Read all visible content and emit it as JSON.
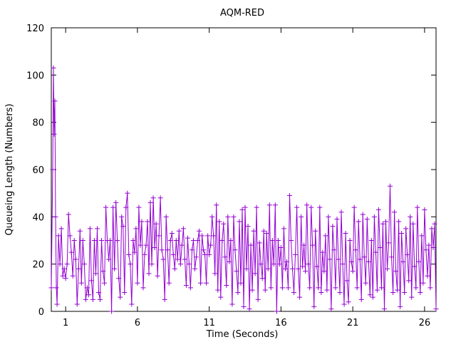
{
  "chart_data": {
    "type": "line",
    "title": "AQM-RED",
    "xlabel": "Time (Seconds)",
    "ylabel": "Queueing Length (Numbers)",
    "xlim": [
      0.0,
      26.8
    ],
    "ylim": [
      0,
      120
    ],
    "x_ticks": [
      1,
      6,
      11,
      16,
      21,
      26
    ],
    "y_ticks": [
      0,
      20,
      40,
      60,
      80,
      100,
      120
    ],
    "grid": false,
    "legend": "none",
    "series_color": "#9400d3",
    "marker": "plus",
    "series": [
      {
        "x": [
          0.0,
          0.1,
          0.15,
          0.2,
          0.25,
          0.3,
          0.35,
          0.4,
          0.5,
          0.6,
          0.7,
          0.8,
          0.9,
          1.0,
          1.1,
          1.2,
          1.3,
          1.4,
          1.5,
          1.6,
          1.7,
          1.8,
          1.9,
          2.0,
          2.1,
          2.2,
          2.3,
          2.4,
          2.5,
          2.6,
          2.7,
          2.8,
          2.9,
          3.0,
          3.1,
          3.2,
          3.3,
          3.4,
          3.5,
          3.6,
          3.7,
          3.8,
          3.9,
          4.0,
          4.1,
          4.2,
          4.3,
          4.4,
          4.5,
          4.6,
          4.7,
          4.8,
          4.9,
          5.0,
          5.1,
          5.2,
          5.3,
          5.4,
          5.5,
          5.6,
          5.7,
          5.8,
          5.9,
          6.0,
          6.1,
          6.2,
          6.3,
          6.4,
          6.5,
          6.6,
          6.7,
          6.8,
          6.9,
          7.0,
          7.1,
          7.2,
          7.3,
          7.4,
          7.5,
          7.6,
          7.7,
          7.8,
          7.9,
          8.0,
          8.1,
          8.2,
          8.3,
          8.4,
          8.5,
          8.6,
          8.7,
          8.8,
          8.9,
          9.0,
          9.1,
          9.2,
          9.3,
          9.4,
          9.5,
          9.6,
          9.7,
          9.8,
          9.9,
          10.0,
          10.1,
          10.2,
          10.3,
          10.4,
          10.5,
          10.6,
          10.7,
          10.8,
          10.9,
          11.0,
          11.1,
          11.2,
          11.3,
          11.4,
          11.5,
          11.6,
          11.7,
          11.8,
          11.9,
          12.0,
          12.1,
          12.2,
          12.3,
          12.4,
          12.5,
          12.6,
          12.7,
          12.8,
          12.9,
          13.0,
          13.1,
          13.2,
          13.3,
          13.4,
          13.5,
          13.6,
          13.7,
          13.8,
          13.9,
          14.0,
          14.1,
          14.2,
          14.3,
          14.4,
          14.5,
          14.6,
          14.7,
          14.8,
          14.9,
          15.0,
          15.1,
          15.2,
          15.3,
          15.4,
          15.5,
          15.6,
          15.7,
          15.8,
          15.9,
          16.0,
          16.1,
          16.2,
          16.3,
          16.4,
          16.5,
          16.6,
          16.7,
          16.8,
          16.9,
          17.0,
          17.1,
          17.2,
          17.3,
          17.4,
          17.5,
          17.6,
          17.7,
          17.8,
          17.9,
          18.0,
          18.1,
          18.2,
          18.3,
          18.4,
          18.5,
          18.6,
          18.7,
          18.8,
          18.9,
          19.0,
          19.1,
          19.2,
          19.3,
          19.4,
          19.5,
          19.6,
          19.7,
          19.8,
          19.9,
          20.0,
          20.1,
          20.2,
          20.3,
          20.4,
          20.5,
          20.6,
          20.7,
          20.8,
          20.9,
          21.0,
          21.1,
          21.2,
          21.3,
          21.4,
          21.5,
          21.6,
          21.7,
          21.8,
          21.9,
          22.0,
          22.1,
          22.2,
          22.3,
          22.4,
          22.5,
          22.6,
          22.7,
          22.8,
          22.9,
          23.0,
          23.1,
          23.2,
          23.3,
          23.4,
          23.5,
          23.6,
          23.7,
          23.8,
          23.9,
          24.0,
          24.1,
          24.2,
          24.3,
          24.4,
          24.5,
          24.6,
          24.7,
          24.8,
          24.9,
          25.0,
          25.1,
          25.2,
          25.3,
          25.4,
          25.5,
          25.6,
          25.7,
          25.8,
          25.9,
          26.0,
          26.1,
          26.2,
          26.3,
          26.4,
          26.5,
          26.6,
          26.7,
          26.8
        ],
        "y": [
          10,
          60,
          103,
          75,
          89,
          40,
          10,
          3,
          32,
          20,
          35,
          15,
          18,
          14,
          20,
          41,
          32,
          25,
          15,
          30,
          22,
          3,
          18,
          34,
          12,
          30,
          20,
          5,
          10,
          7,
          35,
          13,
          5,
          30,
          16,
          35,
          8,
          5,
          30,
          17,
          12,
          44,
          30,
          22,
          30,
          0,
          44,
          18,
          46,
          30,
          14,
          6,
          40,
          36,
          8,
          44,
          50,
          24,
          20,
          3,
          30,
          25,
          35,
          12,
          44,
          28,
          38,
          10,
          24,
          28,
          38,
          16,
          46,
          20,
          48,
          27,
          37,
          15,
          32,
          48,
          26,
          22,
          5,
          40,
          26,
          12,
          30,
          33,
          24,
          18,
          30,
          22,
          34,
          20,
          28,
          35,
          22,
          11,
          31,
          20,
          10,
          26,
          30,
          18,
          23,
          30,
          34,
          12,
          32,
          26,
          24,
          12,
          32,
          24,
          28,
          40,
          32,
          16,
          45,
          9,
          38,
          6,
          30,
          37,
          23,
          11,
          40,
          21,
          30,
          3,
          40,
          26,
          17,
          8,
          38,
          12,
          43,
          2,
          44,
          18,
          36,
          1,
          28,
          9,
          34,
          16,
          44,
          5,
          29,
          20,
          14,
          34,
          9,
          33,
          18,
          45,
          10,
          30,
          20,
          45,
          0,
          30,
          20,
          27,
          10,
          35,
          18,
          21,
          10,
          49,
          30,
          18,
          8,
          24,
          44,
          18,
          6,
          40,
          19,
          28,
          17,
          45,
          20,
          10,
          44,
          28,
          2,
          34,
          19,
          10,
          44,
          8,
          25,
          17,
          32,
          9,
          40,
          22,
          1,
          36,
          26,
          10,
          39,
          22,
          8,
          42,
          20,
          3,
          33,
          13,
          4,
          30,
          21,
          17,
          44,
          26,
          10,
          38,
          22,
          5,
          41,
          23,
          12,
          39,
          21,
          7,
          30,
          6,
          40,
          25,
          9,
          43,
          27,
          10,
          37,
          1,
          38,
          18,
          29,
          53,
          23,
          8,
          42,
          17,
          9,
          38,
          2,
          33,
          21,
          8,
          35,
          24,
          13,
          40,
          6,
          37,
          19,
          10,
          44,
          21,
          8,
          32,
          12,
          43,
          26,
          15,
          28,
          10,
          35,
          27,
          37,
          1
        ]
      }
    ]
  }
}
